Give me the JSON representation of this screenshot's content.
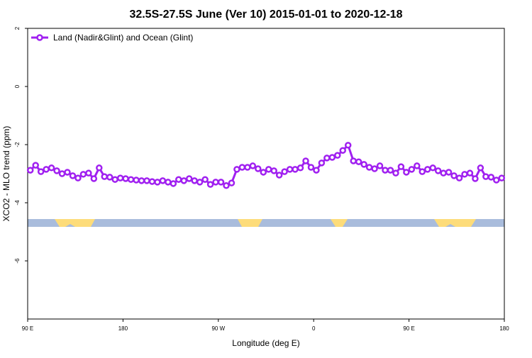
{
  "chart_data": {
    "type": "line",
    "title": "32.5S-27.5S June (Ver 10)   2015-01-01 to 2020-12-18",
    "xlabel": "Longitude (deg E)",
    "ylabel": "XCO2 - MLO trend (ppm)",
    "x": [
      92.5,
      97.5,
      102.5,
      107.5,
      112.5,
      117.5,
      122.5,
      127.5,
      132.5,
      137.5,
      142.5,
      147.5,
      152.5,
      157.5,
      162.5,
      167.5,
      172.5,
      177.5,
      182.5,
      187.5,
      192.5,
      197.5,
      202.5,
      207.5,
      212.5,
      217.5,
      222.5,
      227.5,
      232.5,
      237.5,
      242.5,
      247.5,
      252.5,
      257.5,
      262.5,
      267.5,
      272.5,
      277.5,
      282.5,
      287.5,
      292.5,
      297.5,
      302.5,
      307.5,
      312.5,
      317.5,
      322.5,
      327.5,
      332.5,
      337.5,
      342.5,
      347.5,
      352.5,
      357.5,
      362.5,
      367.5,
      372.5,
      377.5,
      382.5,
      387.5,
      392.5,
      397.5,
      402.5,
      407.5,
      412.5,
      417.5,
      422.5,
      427.5,
      432.5,
      437.5,
      442.5,
      447.5,
      452.5,
      457.5,
      462.5,
      467.5,
      472.5,
      477.5,
      482.5,
      487.5,
      492.5,
      497.5,
      502.5,
      507.5,
      512.5,
      517.5,
      522.5,
      527.5,
      532.5,
      537.5
    ],
    "series": [
      {
        "name": "Land (Nadir&Glint) and Ocean (Glint)",
        "color": "#a020f0",
        "values": [
          -2.88,
          -2.71,
          -2.93,
          -2.85,
          -2.8,
          -2.9,
          -3.0,
          -2.95,
          -3.07,
          -3.15,
          -3.02,
          -2.98,
          -3.17,
          -2.8,
          -3.1,
          -3.12,
          -3.2,
          -3.15,
          -3.17,
          -3.2,
          -3.22,
          -3.24,
          -3.24,
          -3.27,
          -3.29,
          -3.24,
          -3.29,
          -3.34,
          -3.2,
          -3.24,
          -3.17,
          -3.24,
          -3.29,
          -3.2,
          -3.37,
          -3.29,
          -3.29,
          -3.41,
          -3.32,
          -2.85,
          -2.78,
          -2.78,
          -2.73,
          -2.83,
          -2.95,
          -2.85,
          -2.9,
          -3.05,
          -2.93,
          -2.85,
          -2.85,
          -2.8,
          -2.56,
          -2.78,
          -2.88,
          -2.63,
          -2.46,
          -2.44,
          -2.37,
          -2.2,
          -2.02,
          -2.56,
          -2.59,
          -2.68,
          -2.78,
          -2.83,
          -2.73,
          -2.88,
          -2.88,
          -2.98,
          -2.76,
          -2.95,
          -2.85,
          -2.73,
          -2.93,
          -2.85,
          -2.8,
          -2.9,
          -2.98,
          -2.95,
          -3.07,
          -3.15,
          -3.02,
          -2.98,
          -3.17,
          -2.8,
          -3.1,
          -3.12,
          -3.22,
          -3.15
        ]
      }
    ],
    "xlim": [
      90,
      540
    ],
    "xticks": [
      {
        "value": 90,
        "label": "90 E"
      },
      {
        "value": 180,
        "label": "180"
      },
      {
        "value": 270,
        "label": "90 W"
      },
      {
        "value": 360,
        "label": "0"
      },
      {
        "value": 450,
        "label": "90 E"
      },
      {
        "value": 540,
        "label": "180"
      }
    ],
    "ylim": [
      -8,
      2
    ],
    "yticks": [
      -6,
      -4,
      -2,
      0,
      2
    ],
    "legend": "top-left"
  }
}
